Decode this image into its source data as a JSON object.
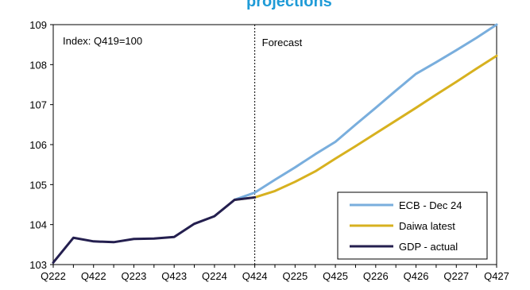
{
  "chart_data": {
    "type": "line",
    "title_fragment": "projections",
    "colors": {
      "title": "#1f9bd7",
      "ecb": "#79aedd",
      "daiwa": "#d7b11f",
      "gdp": "#241f4f",
      "axis": "#000000",
      "divider": "#000000"
    },
    "ylim": [
      103,
      109
    ],
    "y_ticks": [
      "103",
      "104",
      "105",
      "106",
      "107",
      "108",
      "109"
    ],
    "y_tick_values": [
      103,
      104,
      105,
      106,
      107,
      108,
      109
    ],
    "x_categories": [
      "Q222",
      "Q322",
      "Q422",
      "Q123",
      "Q223",
      "Q323",
      "Q423",
      "Q124",
      "Q224",
      "Q324",
      "Q424",
      "Q125",
      "Q225",
      "Q325",
      "Q425",
      "Q126",
      "Q226",
      "Q326",
      "Q426",
      "Q127",
      "Q227",
      "Q327",
      "Q427"
    ],
    "x_tick_labels": [
      "Q222",
      "Q422",
      "Q223",
      "Q423",
      "Q224",
      "Q424",
      "Q225",
      "Q425",
      "Q226",
      "Q426",
      "Q227",
      "Q427"
    ],
    "annotations": {
      "index_label": "Index: Q419=100",
      "forecast_label": "Forecast"
    },
    "forecast_divider_category": "Q424",
    "legend_placement": "bottom-right",
    "series": [
      {
        "key": "ecb",
        "name": "ECB - Dec 24",
        "x": [
          "Q324",
          "Q424",
          "Q125",
          "Q225",
          "Q325",
          "Q425",
          "Q126",
          "Q226",
          "Q326",
          "Q426",
          "Q127",
          "Q227",
          "Q327",
          "Q427"
        ],
        "values": [
          104.62,
          104.8,
          105.12,
          105.43,
          105.76,
          106.07,
          106.5,
          106.92,
          107.35,
          107.77,
          108.06,
          108.36,
          108.67,
          109.0
        ]
      },
      {
        "key": "daiwa",
        "name": "Daiwa latest",
        "x": [
          "Q324",
          "Q424",
          "Q125",
          "Q225",
          "Q325",
          "Q425",
          "Q126",
          "Q226",
          "Q326",
          "Q426",
          "Q127",
          "Q227",
          "Q327",
          "Q427"
        ],
        "values": [
          104.62,
          104.68,
          104.84,
          105.07,
          105.33,
          105.65,
          105.96,
          106.28,
          106.6,
          106.92,
          107.25,
          107.57,
          107.9,
          108.22
        ]
      },
      {
        "key": "gdp",
        "name": "GDP - actual",
        "x": [
          "Q222",
          "Q322",
          "Q422",
          "Q123",
          "Q223",
          "Q323",
          "Q423",
          "Q124",
          "Q224",
          "Q324",
          "Q424"
        ],
        "values": [
          103.05,
          103.67,
          103.58,
          103.56,
          103.64,
          103.65,
          103.69,
          104.02,
          104.21,
          104.62,
          104.68
        ]
      }
    ],
    "legend_order": [
      "ecb",
      "daiwa",
      "gdp"
    ]
  }
}
